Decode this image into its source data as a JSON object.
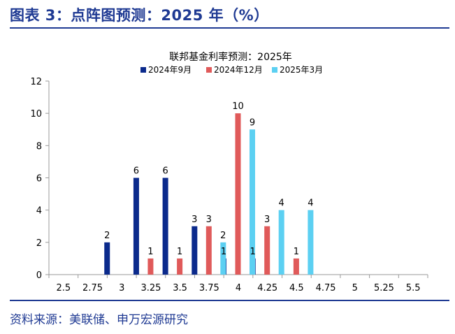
{
  "figure": {
    "title": "图表 3：点阵图预测：2025 年（%）",
    "source": "资料来源：美联储、申万宏源研究",
    "title_color": "#1f3a93"
  },
  "chart_data": {
    "type": "bar",
    "title": "联邦基金利率预测：2025年",
    "xlabel": "",
    "ylabel": "",
    "ylim": [
      0,
      12
    ],
    "yticks": [
      0,
      2,
      4,
      6,
      8,
      10,
      12
    ],
    "legend_position": "top-center",
    "categories": [
      "2.5",
      "2.75",
      "3",
      "3.25",
      "3.5",
      "3.75",
      "4",
      "4.25",
      "4.5",
      "4.75",
      "5",
      "5.25",
      "5.5"
    ],
    "series": [
      {
        "name": "2024年9月",
        "color": "#0b2a8c",
        "values": [
          0,
          0,
          2,
          6,
          6,
          3,
          1,
          1,
          0,
          0,
          0,
          0,
          0
        ]
      },
      {
        "name": "2024年12月",
        "color": "#e05a5a",
        "values": [
          0,
          0,
          0,
          1,
          1,
          3,
          10,
          3,
          1,
          0,
          0,
          0,
          0
        ]
      },
      {
        "name": "2025年3月",
        "color": "#5cd0f2",
        "values": [
          0,
          0,
          0,
          0,
          0,
          2,
          9,
          4,
          4,
          0,
          0,
          0,
          0
        ]
      }
    ]
  }
}
